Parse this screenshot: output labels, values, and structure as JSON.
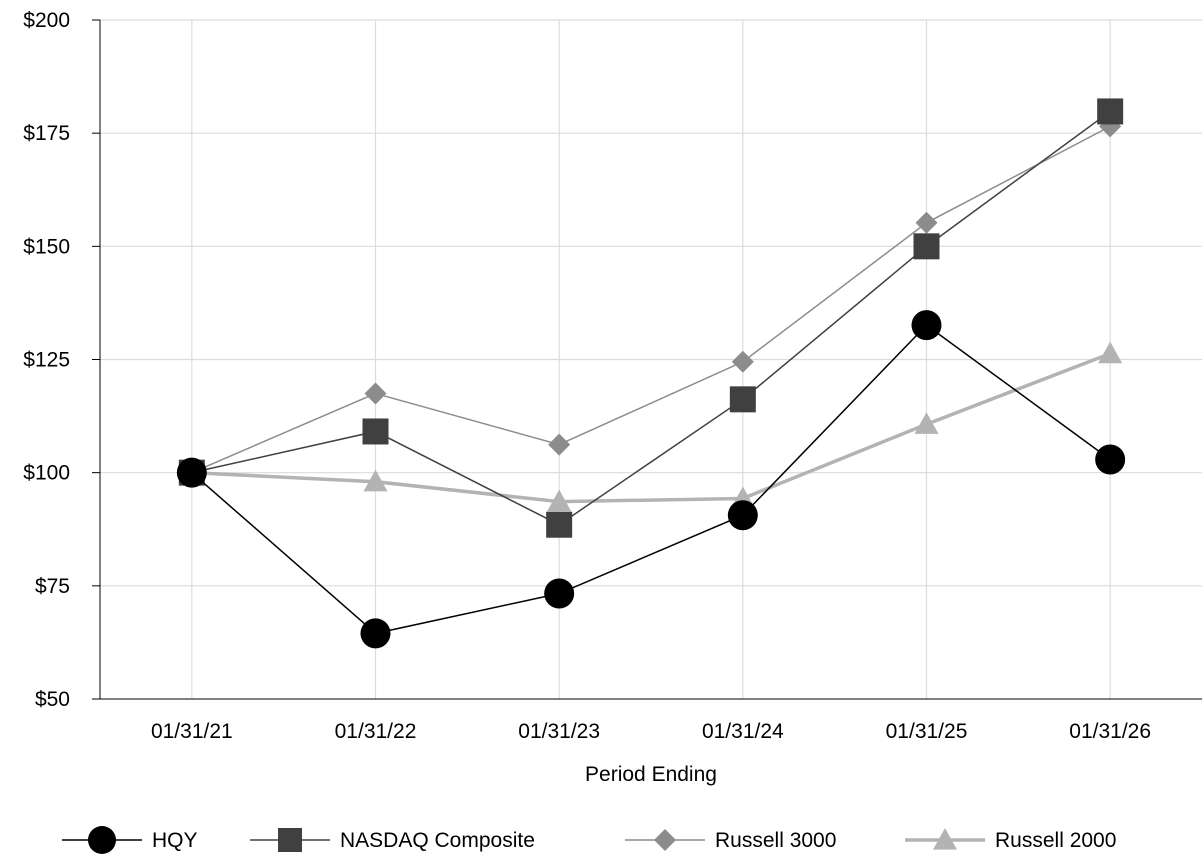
{
  "chart_data": {
    "type": "line",
    "xlabel": "Period Ending",
    "ylabel": "",
    "categories": [
      "01/31/21",
      "01/31/22",
      "01/31/23",
      "01/31/24",
      "01/31/25",
      "01/31/26"
    ],
    "ylim": [
      50,
      200
    ],
    "yticks": [
      50,
      75,
      100,
      125,
      150,
      175,
      200
    ],
    "ytick_labels": [
      "$50",
      "$75",
      "$100",
      "$125",
      "$150",
      "$175",
      "$200"
    ],
    "grid": true,
    "legend_position": "bottom",
    "series": [
      {
        "name": "HQY",
        "marker": "circle",
        "color": "#000000",
        "values": [
          100,
          64.5,
          73.3,
          90.6,
          132.6,
          102.9
        ]
      },
      {
        "name": "NASDAQ Composite",
        "marker": "square",
        "color": "#404040",
        "values": [
          100,
          109.1,
          88.5,
          116.2,
          150.0,
          179.8
        ]
      },
      {
        "name": "Russell 3000",
        "marker": "diamond",
        "color": "#8c8c8c",
        "values": [
          100,
          117.5,
          106.2,
          124.5,
          155.2,
          176.5
        ]
      },
      {
        "name": "Russell 2000",
        "marker": "triangle",
        "color": "#b3b3b3",
        "values": [
          100,
          98.0,
          93.6,
          94.3,
          110.7,
          126.3
        ]
      }
    ]
  }
}
